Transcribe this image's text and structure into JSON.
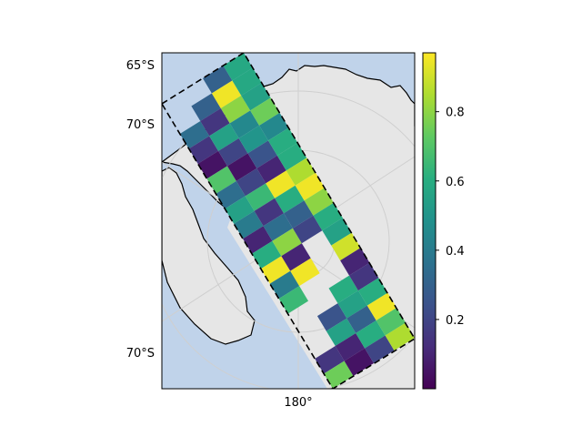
{
  "chart_data": {
    "type": "heatmap",
    "title": "",
    "projection": "South polar stereographic map of the Ross Sea region with a diagonal swath of gridded values outlined by a dashed boundary",
    "map_colors": {
      "ocean": "#c0d3ea",
      "land": "#e6e6e6",
      "coastline": "#000000",
      "swath_outline": "#000000",
      "graticule": "#cfcfcf"
    },
    "axis_labels": {
      "left": [
        "65°S",
        "70°S",
        "70°S"
      ],
      "bottom": [
        "180°"
      ]
    },
    "grid": true,
    "colorbar": {
      "colormap": "viridis",
      "range": [
        0.0,
        0.97
      ],
      "ticks": [
        "0.2",
        "0.4",
        "0.6",
        "0.8"
      ],
      "tick_values": [
        0.2,
        0.4,
        0.6,
        0.8
      ],
      "location": "right"
    },
    "swath_grid": {
      "columns": 4,
      "rows_along_track": 19,
      "cell_values": [
        [
          null,
          null,
          0.3,
          0.58
        ],
        [
          null,
          0.3,
          0.95,
          0.58
        ],
        [
          0.35,
          0.15,
          0.8,
          0.55
        ],
        [
          0.15,
          0.55,
          0.45,
          0.75
        ],
        [
          0.05,
          0.2,
          0.5,
          0.45
        ],
        [
          0.7,
          0.05,
          0.25,
          0.6
        ],
        [
          0.35,
          0.2,
          0.1,
          0.6
        ],
        [
          0.55,
          0.65,
          0.95,
          0.85
        ],
        [
          0.4,
          0.15,
          0.6,
          0.95
        ],
        [
          0.1,
          0.35,
          0.3,
          0.8
        ],
        [
          0.6,
          0.8,
          0.2,
          0.6
        ],
        [
          0.95,
          0.1,
          null,
          0.55
        ],
        [
          0.4,
          0.95,
          null,
          0.9
        ],
        [
          0.65,
          null,
          null,
          0.1
        ],
        [
          null,
          null,
          0.6,
          0.15
        ],
        [
          null,
          0.25,
          0.55,
          0.6
        ],
        [
          null,
          0.55,
          0.3,
          0.95
        ],
        [
          0.15,
          0.1,
          0.6,
          0.7
        ],
        [
          0.75,
          0.05,
          0.2,
          0.85
        ]
      ]
    }
  }
}
